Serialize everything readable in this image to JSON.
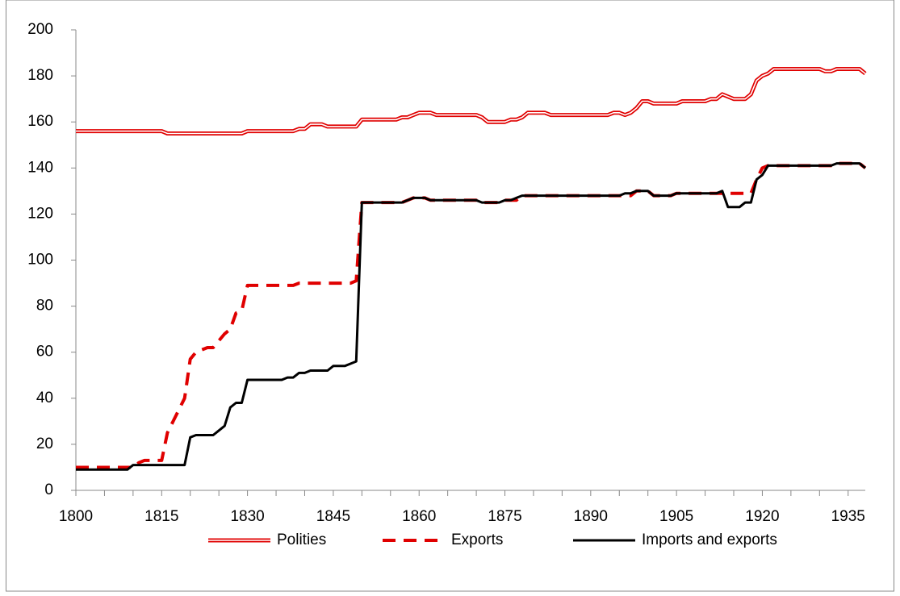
{
  "chart_data": {
    "type": "line",
    "x": [
      1800,
      1801,
      1802,
      1803,
      1804,
      1805,
      1806,
      1807,
      1808,
      1809,
      1810,
      1811,
      1812,
      1813,
      1814,
      1815,
      1816,
      1817,
      1818,
      1819,
      1820,
      1821,
      1822,
      1823,
      1824,
      1825,
      1826,
      1827,
      1828,
      1829,
      1830,
      1831,
      1832,
      1833,
      1834,
      1835,
      1836,
      1837,
      1838,
      1839,
      1840,
      1841,
      1842,
      1843,
      1844,
      1845,
      1846,
      1847,
      1848,
      1849,
      1850,
      1851,
      1852,
      1853,
      1854,
      1855,
      1856,
      1857,
      1858,
      1859,
      1860,
      1861,
      1862,
      1863,
      1864,
      1865,
      1866,
      1867,
      1868,
      1869,
      1870,
      1871,
      1872,
      1873,
      1874,
      1875,
      1876,
      1877,
      1878,
      1879,
      1880,
      1881,
      1882,
      1883,
      1884,
      1885,
      1886,
      1887,
      1888,
      1889,
      1890,
      1891,
      1892,
      1893,
      1894,
      1895,
      1896,
      1897,
      1898,
      1899,
      1900,
      1901,
      1902,
      1903,
      1904,
      1905,
      1906,
      1907,
      1908,
      1909,
      1910,
      1911,
      1912,
      1913,
      1914,
      1915,
      1916,
      1917,
      1918,
      1919,
      1920,
      1921,
      1922,
      1923,
      1924,
      1925,
      1926,
      1927,
      1928,
      1929,
      1930,
      1931,
      1932,
      1933,
      1934,
      1935,
      1936,
      1937,
      1938
    ],
    "series": [
      {
        "name": "Polities",
        "color": "#e00000",
        "style": "double",
        "values": [
          156,
          156,
          156,
          156,
          156,
          156,
          156,
          156,
          156,
          156,
          156,
          156,
          156,
          156,
          156,
          156,
          155,
          155,
          155,
          155,
          155,
          155,
          155,
          155,
          155,
          155,
          155,
          155,
          155,
          155,
          156,
          156,
          156,
          156,
          156,
          156,
          156,
          156,
          156,
          157,
          157,
          159,
          159,
          159,
          158,
          158,
          158,
          158,
          158,
          158,
          161,
          161,
          161,
          161,
          161,
          161,
          161,
          162,
          162,
          163,
          164,
          164,
          164,
          163,
          163,
          163,
          163,
          163,
          163,
          163,
          163,
          162,
          160,
          160,
          160,
          160,
          161,
          161,
          162,
          164,
          164,
          164,
          164,
          163,
          163,
          163,
          163,
          163,
          163,
          163,
          163,
          163,
          163,
          163,
          164,
          164,
          163,
          164,
          166,
          169,
          169,
          168,
          168,
          168,
          168,
          168,
          169,
          169,
          169,
          169,
          169,
          170,
          170,
          172,
          171,
          170,
          170,
          170,
          172,
          178,
          180,
          181,
          183,
          183,
          183,
          183,
          183,
          183,
          183,
          183,
          183,
          182,
          182,
          183,
          183,
          183,
          183,
          183,
          181
        ]
      },
      {
        "name": "Exports",
        "color": "#e00000",
        "style": "dashed",
        "values": [
          10,
          10,
          10,
          10,
          10,
          10,
          10,
          10,
          10,
          10,
          10,
          12,
          13,
          13,
          13,
          13,
          25,
          30,
          35,
          40,
          57,
          60,
          61,
          62,
          62,
          65,
          68,
          70,
          77,
          78,
          89,
          89,
          89,
          89,
          89,
          89,
          89,
          89,
          89,
          90,
          90,
          90,
          90,
          90,
          90,
          90,
          90,
          90,
          90,
          91,
          125,
          125,
          125,
          125,
          125,
          125,
          125,
          125,
          126,
          127,
          127,
          127,
          126,
          126,
          126,
          126,
          126,
          126,
          126,
          126,
          126,
          125,
          125,
          125,
          125,
          126,
          126,
          126,
          128,
          128,
          128,
          128,
          128,
          128,
          128,
          128,
          128,
          128,
          128,
          128,
          128,
          128,
          128,
          128,
          128,
          128,
          128,
          128,
          130,
          130,
          130,
          128,
          128,
          128,
          128,
          129,
          129,
          129,
          129,
          129,
          129,
          129,
          129,
          129,
          129,
          129,
          129,
          129,
          129,
          135,
          140,
          141,
          141,
          141,
          141,
          141,
          141,
          141,
          141,
          141,
          141,
          141,
          141,
          142,
          142,
          142,
          142,
          142,
          140
        ]
      },
      {
        "name": "Imports and exports",
        "color": "#000000",
        "style": "solid",
        "values": [
          9,
          9,
          9,
          9,
          9,
          9,
          9,
          9,
          9,
          9,
          11,
          11,
          11,
          11,
          11,
          11,
          11,
          11,
          11,
          11,
          23,
          24,
          24,
          24,
          24,
          26,
          28,
          36,
          38,
          38,
          48,
          48,
          48,
          48,
          48,
          48,
          48,
          49,
          49,
          51,
          51,
          52,
          52,
          52,
          52,
          54,
          54,
          54,
          55,
          56,
          125,
          125,
          125,
          125,
          125,
          125,
          125,
          125,
          126,
          127,
          127,
          127,
          126,
          126,
          126,
          126,
          126,
          126,
          126,
          126,
          126,
          125,
          125,
          125,
          125,
          126,
          126,
          127,
          128,
          128,
          128,
          128,
          128,
          128,
          128,
          128,
          128,
          128,
          128,
          128,
          128,
          128,
          128,
          128,
          128,
          128,
          129,
          129,
          130,
          130,
          130,
          128,
          128,
          128,
          128,
          129,
          129,
          129,
          129,
          129,
          129,
          129,
          129,
          130,
          123,
          123,
          123,
          125,
          125,
          135,
          137,
          141,
          141,
          141,
          141,
          141,
          141,
          141,
          141,
          141,
          141,
          141,
          141,
          142,
          142,
          142,
          142,
          142,
          140
        ]
      }
    ],
    "xlim": [
      1800,
      1938
    ],
    "xticks": [
      1800,
      1815,
      1830,
      1845,
      1860,
      1875,
      1890,
      1905,
      1920,
      1935
    ],
    "xminorticks": [
      1805,
      1810,
      1820,
      1825,
      1835,
      1840,
      1850,
      1855,
      1865,
      1870,
      1880,
      1885,
      1895,
      1900,
      1910,
      1915,
      1925,
      1930
    ],
    "ylim": [
      0,
      200
    ],
    "yticks": [
      0,
      20,
      40,
      60,
      80,
      100,
      120,
      140,
      160,
      180,
      200
    ],
    "legend": "bottom"
  }
}
